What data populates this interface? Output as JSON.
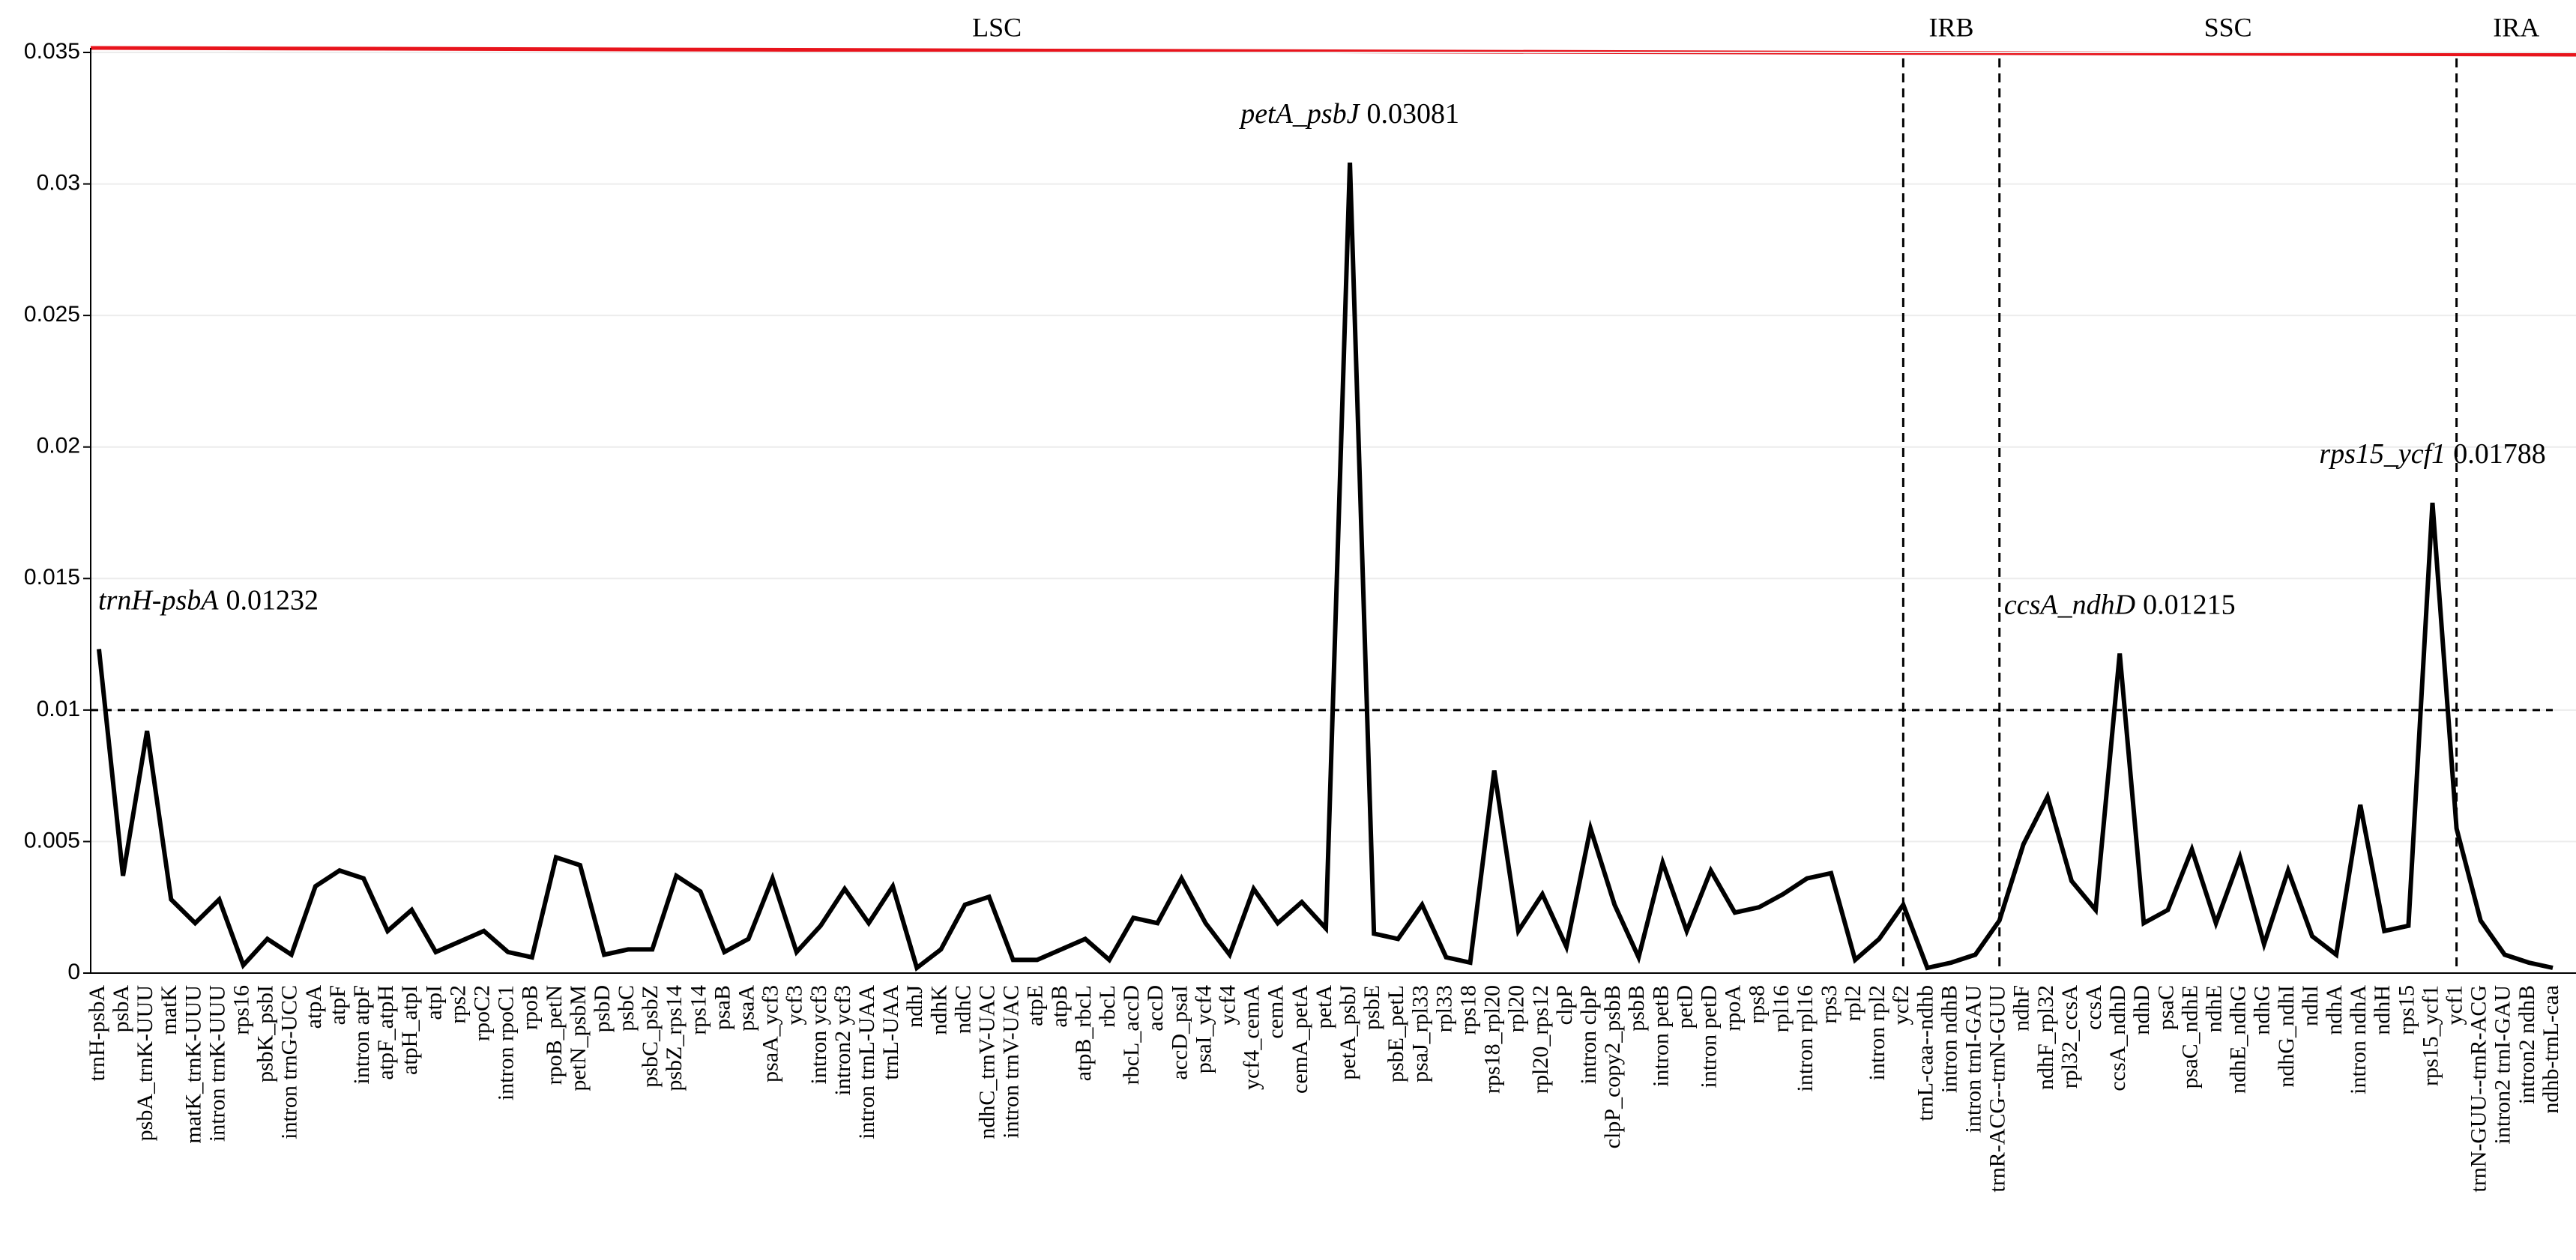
{
  "chart_data": {
    "type": "line",
    "categories": [
      "trnH-psbA",
      "psbA",
      "psbA_trnK-UUU",
      "matK",
      "matK_trnK-UUU",
      "intron trnK-UUU",
      "rps16",
      "psbK_psbI",
      "intron trnG-UCC",
      "atpA",
      "atpF",
      "intron atpF",
      "atpF_atpH",
      "atpH_atpI",
      "atpI",
      "rps2",
      "rpoC2",
      "intron rpoC1",
      "rpoB",
      "rpoB_petN",
      "petN_psbM",
      "psbD",
      "psbC",
      "psbC_psbZ",
      "psbZ_rps14",
      "rps14",
      "psaB",
      "psaA",
      "psaA_ycf3",
      "ycf3",
      "intron ycf3",
      "intron2 ycf3",
      "intron trnL-UAA",
      "trnL-UAA",
      "ndhJ",
      "ndhK",
      "ndhC",
      "ndhC_trnV-UAC",
      "intron trnV-UAC",
      "atpE",
      "atpB",
      "atpB_rbcL",
      "rbcL",
      "rbcL_accD",
      "accD",
      "accD_psaI",
      "psaI_ycf4",
      "ycf4",
      "ycf4_cemA",
      "cemA",
      "cemA_petA",
      "petA",
      "petA_psbJ",
      "psbE",
      "psbE_petL",
      "psaJ_rpl33",
      "rpl33",
      "rps18",
      "rps18_rpl20",
      "rpl20",
      "rpl20_rps12",
      "clpP",
      "intron clpP",
      "clpP_copy2_psbB",
      "psbB",
      "intron petB",
      "petD",
      "intron petD",
      "rpoA",
      "rps8",
      "rpl16",
      "intron rpl16",
      "rps3",
      "rpl2",
      "intron rpl2",
      "ycf2",
      "trnL-caa--ndhb",
      "intron ndhB",
      "intron trnI-GAU",
      "trnR-ACG--trnN-GUU",
      "ndhF",
      "ndhF_rpl32",
      "rpl32_ccsA",
      "ccsA",
      "ccsA_ndhD",
      "ndhD",
      "psaC",
      "psaC_ndhE",
      "ndhE",
      "ndhE_ndhG",
      "ndhG",
      "ndhG_ndhI",
      "ndhI",
      "ndhA",
      "intron ndhA",
      "ndhH",
      "rps15",
      "rps15_ycf1",
      "ycf1",
      "trnN-GUU--trnR-ACG",
      "intron2 trnI-GAU",
      "intron2 ndhB",
      "ndhb-trnL-caa"
    ],
    "values": [
      0.01232,
      0.0037,
      0.0092,
      0.0028,
      0.0019,
      0.0028,
      0.0003,
      0.0013,
      0.0007,
      0.0033,
      0.0039,
      0.0036,
      0.0016,
      0.0024,
      0.0008,
      0.0012,
      0.0016,
      0.0008,
      0.0006,
      0.0044,
      0.0041,
      0.0007,
      0.0009,
      0.0009,
      0.0037,
      0.0031,
      0.0008,
      0.0013,
      0.0036,
      0.0008,
      0.0018,
      0.0032,
      0.0019,
      0.0033,
      0.0002,
      0.0009,
      0.0026,
      0.0029,
      0.0005,
      0.0005,
      0.0009,
      0.0013,
      0.0005,
      0.0021,
      0.0019,
      0.0036,
      0.0019,
      0.0007,
      0.0032,
      0.0019,
      0.0027,
      0.0017,
      0.03081,
      0.0015,
      0.0013,
      0.0026,
      0.0006,
      0.0004,
      0.0077,
      0.0016,
      0.003,
      0.001,
      0.0055,
      0.0026,
      0.0006,
      0.0042,
      0.0016,
      0.0039,
      0.0023,
      0.0025,
      0.003,
      0.0036,
      0.0038,
      0.0005,
      0.0013,
      0.0026,
      0.0002,
      0.0004,
      0.0007,
      0.002,
      0.0049,
      0.0067,
      0.0035,
      0.0024,
      0.01215,
      0.0019,
      0.0024,
      0.0047,
      0.0019,
      0.0044,
      0.0011,
      0.0039,
      0.0014,
      0.0007,
      0.0064,
      0.0016,
      0.0018,
      0.01788,
      0.0055,
      0.002,
      0.0007,
      0.0004,
      0.0002
    ],
    "color": "#000000",
    "ylim": [
      0,
      0.035
    ],
    "yticks": [
      0,
      0.005,
      0.01,
      0.015,
      0.02,
      0.025,
      0.03,
      0.035
    ],
    "grid": true,
    "reference_line": 0.01,
    "regions": [
      {
        "name": "LSC",
        "start": "trnH-psbA"
      },
      {
        "name": "IRB",
        "start": "ycf2"
      },
      {
        "name": "SSC",
        "start": "trnR-ACG--trnN-GUU"
      },
      {
        "name": "IRA",
        "start": "ycf1"
      }
    ],
    "annotations": [
      {
        "name": "trnH-psbA",
        "value": 0.01232
      },
      {
        "name": "petA_psbJ",
        "value": 0.03081
      },
      {
        "name": "ccsA_ndhD",
        "value": 0.01215
      },
      {
        "name": "rps15_ycf1",
        "value": 0.01788
      }
    ]
  }
}
